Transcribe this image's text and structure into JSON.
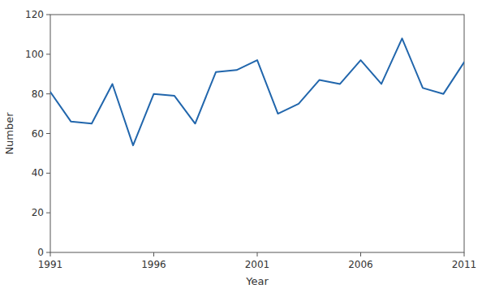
{
  "chart_data": {
    "type": "line",
    "x": [
      1991,
      1992,
      1993,
      1994,
      1995,
      1996,
      1997,
      1998,
      1999,
      2000,
      2001,
      2002,
      2003,
      2004,
      2005,
      2006,
      2007,
      2008,
      2009,
      2010,
      2011
    ],
    "values": [
      81,
      66,
      65,
      85,
      54,
      80,
      79,
      65,
      91,
      92,
      97,
      70,
      75,
      87,
      85,
      97,
      85,
      108,
      83,
      80,
      96
    ],
    "color": "#2166ac",
    "xlabel": "Year",
    "ylabel": "Number",
    "xlim": [
      1991,
      2011
    ],
    "ylim": [
      0,
      120
    ],
    "xticks": [
      1991,
      1996,
      2001,
      2006,
      2011
    ],
    "yticks": [
      0,
      20,
      40,
      60,
      80,
      100,
      120
    ],
    "grid": false
  }
}
